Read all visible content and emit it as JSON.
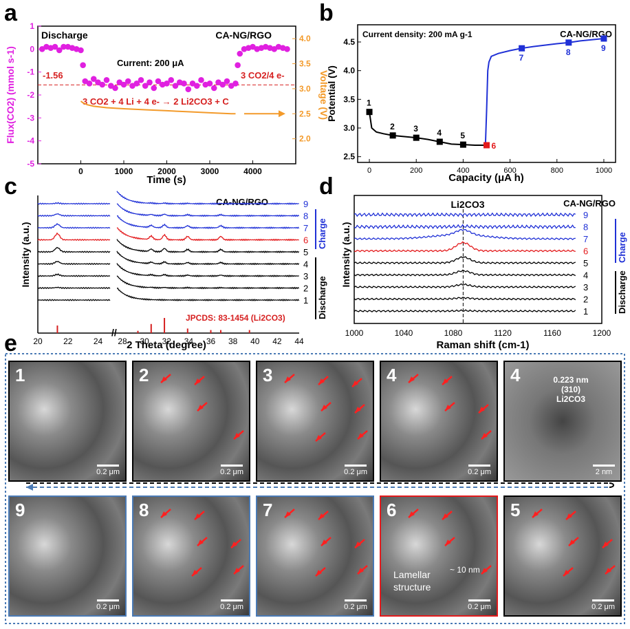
{
  "panel_labels": {
    "a": "a",
    "b": "b",
    "c": "c",
    "d": "d",
    "e": "e"
  },
  "colors": {
    "magenta": "#e020e0",
    "orange": "#f39a2a",
    "red": "#e31a1c",
    "blue": "#1f30d6",
    "black": "#000000",
    "dashed_frame": "#4a7ab5"
  },
  "chart_data": [
    {
      "id": "a",
      "type": "scatter",
      "title_left": "Discharge",
      "title_right": "CA-NG/RGO",
      "xlabel": "Time (s)",
      "ylabel_left": "Flux(CO2) (mmol s-1)",
      "ylabel_right": "Voltage (V)",
      "xlim": [
        -1000,
        5000
      ],
      "ylim_left": [
        -5,
        1
      ],
      "ylim_right": [
        1.5,
        4.25
      ],
      "xticks": [
        0,
        1000,
        2000,
        3000,
        4000
      ],
      "yticks_left": [
        1,
        0,
        -1,
        -2,
        -3,
        -4,
        -5
      ],
      "yticks_right": [
        2.0,
        2.5,
        3.0,
        3.5,
        4.0
      ],
      "annotations": {
        "current": "Current: 200 μA",
        "level": "-1.56",
        "ratio": "3 CO2/4 e-",
        "reaction": "3 CO2 + 4 Li + 4 e- → 2 Li2CO3 + C"
      },
      "flux_x": [
        -900,
        -800,
        -700,
        -600,
        -500,
        -400,
        -300,
        -200,
        -100,
        0,
        50,
        100,
        200,
        300,
        400,
        500,
        600,
        700,
        800,
        900,
        1000,
        1100,
        1200,
        1300,
        1400,
        1500,
        1600,
        1700,
        1800,
        1900,
        2000,
        2100,
        2200,
        2300,
        2400,
        2500,
        2600,
        2700,
        2800,
        2900,
        3000,
        3100,
        3200,
        3300,
        3400,
        3500,
        3600,
        3650,
        3700,
        3800,
        3900,
        4000,
        4100,
        4200,
        4300,
        4400,
        4500,
        4600,
        4700,
        4800
      ],
      "flux_y": [
        0,
        0.1,
        0.05,
        0.1,
        -0.05,
        0.1,
        0.1,
        0.05,
        0,
        -0.05,
        -0.7,
        -1.4,
        -1.5,
        -1.3,
        -1.45,
        -1.55,
        -1.35,
        -1.6,
        -1.7,
        -1.45,
        -1.55,
        -1.4,
        -1.6,
        -1.5,
        -1.35,
        -1.6,
        -1.45,
        -1.7,
        -1.4,
        -1.55,
        -1.5,
        -1.35,
        -1.6,
        -1.45,
        -1.5,
        -1.75,
        -1.5,
        -1.6,
        -1.35,
        -1.55,
        -1.5,
        -1.7,
        -1.45,
        -1.55,
        -1.4,
        -1.6,
        -1.5,
        -0.7,
        -0.2,
        0.0,
        0.05,
        0.1,
        0.0,
        0.05,
        0.1,
        0.05,
        0.0,
        0.1,
        0.05,
        0.0
      ],
      "voltage_x": [
        0,
        50,
        150,
        300,
        600,
        1000,
        1500,
        2000,
        2500,
        3000,
        3500,
        3600
      ],
      "voltage_y": [
        2.75,
        2.72,
        2.68,
        2.65,
        2.62,
        2.6,
        2.58,
        2.56,
        2.54,
        2.52,
        2.5,
        2.5
      ]
    },
    {
      "id": "b",
      "type": "line",
      "title_left": "Current density: 200 mA g-1",
      "title_right": "CA-NG/RGO",
      "xlabel": "Capacity (μA h)",
      "ylabel": "Potential (V)",
      "xlim": [
        -50,
        1050
      ],
      "ylim": [
        2.4,
        4.8
      ],
      "xticks": [
        0,
        200,
        400,
        600,
        800,
        1000
      ],
      "yticks": [
        2.5,
        3.0,
        3.5,
        4.0,
        4.5
      ],
      "discharge_x": [
        0,
        10,
        30,
        60,
        100,
        150,
        200,
        250,
        300,
        350,
        400,
        450,
        490
      ],
      "discharge_y": [
        3.28,
        3.0,
        2.93,
        2.9,
        2.87,
        2.85,
        2.83,
        2.8,
        2.76,
        2.72,
        2.71,
        2.7,
        2.7
      ],
      "charge_x": [
        495,
        500,
        505,
        510,
        520,
        550,
        600,
        650,
        700,
        800,
        850,
        900,
        1000
      ],
      "charge_y": [
        2.7,
        3.3,
        4.0,
        4.15,
        4.25,
        4.3,
        4.35,
        4.39,
        4.42,
        4.47,
        4.49,
        4.52,
        4.56
      ],
      "points": [
        {
          "label": "1",
          "x": 0,
          "y": 3.28,
          "color": "#000000"
        },
        {
          "label": "2",
          "x": 100,
          "y": 2.87,
          "color": "#000000"
        },
        {
          "label": "3",
          "x": 200,
          "y": 2.83,
          "color": "#000000"
        },
        {
          "label": "4",
          "x": 300,
          "y": 2.76,
          "color": "#000000"
        },
        {
          "label": "5",
          "x": 400,
          "y": 2.71,
          "color": "#000000"
        },
        {
          "label": "6",
          "x": 500,
          "y": 2.7,
          "color": "#e31a1c"
        },
        {
          "label": "7",
          "x": 650,
          "y": 4.39,
          "color": "#1f30d6"
        },
        {
          "label": "8",
          "x": 850,
          "y": 4.49,
          "color": "#1f30d6"
        },
        {
          "label": "9",
          "x": 1000,
          "y": 4.56,
          "color": "#1f30d6"
        }
      ]
    },
    {
      "id": "c",
      "type": "line",
      "title_right": "CA-NG/RGO",
      "xlabel": "2 Theta (degree)",
      "ylabel": "Intensity (a.u.)",
      "xticks": [
        "20",
        "22",
        "24",
        "28",
        "30",
        "32",
        "34",
        "36",
        "38",
        "40",
        "42",
        "44"
      ],
      "reference_label": "JPCDS: 83-1454 (Li2CO3)",
      "reference_peaks_theta": [
        21.3,
        29.4,
        30.6,
        31.8,
        33.9,
        36.0,
        36.9,
        39.5
      ],
      "reference_peaks_rel": [
        0.5,
        0.15,
        0.6,
        1.0,
        0.3,
        0.2,
        0.2,
        0.2
      ],
      "peaks_theta": [
        21.3,
        30.6,
        31.8,
        33.9,
        36.9
      ],
      "curve_labels": [
        "9",
        "8",
        "7",
        "6",
        "5",
        "4",
        "3",
        "2",
        "1"
      ],
      "curve_colors": [
        "#1f30d6",
        "#1f30d6",
        "#1f30d6",
        "#e31a1c",
        "#000000",
        "#000000",
        "#000000",
        "#000000",
        "#000000"
      ],
      "peak_strength": [
        0.1,
        0.3,
        0.6,
        1.0,
        0.7,
        0.4,
        0.25,
        0.1,
        0.0
      ],
      "arrow_discharge": "Discharge",
      "arrow_charge": "Charge"
    },
    {
      "id": "d",
      "type": "line",
      "title_center": "Li2CO3",
      "title_right": "CA-NG/RGO",
      "xlabel": "Raman shift (cm-1)",
      "ylabel": "Intensity (a.u.)",
      "xlim": [
        1000,
        1200
      ],
      "xticks": [
        1000,
        1040,
        1080,
        1120,
        1160,
        1200
      ],
      "peak_shift": 1088,
      "curve_labels": [
        "9",
        "8",
        "7",
        "6",
        "5",
        "4",
        "3",
        "2",
        "1"
      ],
      "curve_colors": [
        "#1f30d6",
        "#1f30d6",
        "#1f30d6",
        "#e31a1c",
        "#000000",
        "#000000",
        "#000000",
        "#000000",
        "#000000"
      ],
      "peak_strength": [
        0.0,
        0.05,
        0.6,
        1.0,
        0.7,
        0.5,
        0.3,
        0.15,
        0.05
      ],
      "arrow_discharge": "Discharge",
      "arrow_charge": "Charge"
    }
  ],
  "sem": {
    "row1": [
      {
        "num": "1",
        "scale": "0.2 μm",
        "border": "#000000",
        "arrows": 0
      },
      {
        "num": "2",
        "scale": "0.2 μm",
        "border": "#000000",
        "arrows": 4
      },
      {
        "num": "3",
        "scale": "0.2 μm",
        "border": "#000000",
        "arrows": 7
      },
      {
        "num": "4",
        "scale": "0.2 μm",
        "border": "#000000",
        "arrows": 5
      },
      {
        "num": "4",
        "scale": "2 nm",
        "border": "#000000",
        "arrows": 0,
        "tem": true,
        "tem_text_1": "0.223 nm",
        "tem_text_2": "(310)",
        "tem_text_3": "Li2CO3"
      }
    ],
    "row2": [
      {
        "num": "9",
        "scale": "0.2 μm",
        "border": "#4a7ab5",
        "arrows": 0
      },
      {
        "num": "8",
        "scale": "0.2 μm",
        "border": "#4a7ab5",
        "arrows": 6
      },
      {
        "num": "7",
        "scale": "0.2 μm",
        "border": "#4a7ab5",
        "arrows": 6
      },
      {
        "num": "6",
        "scale": "0.2 μm",
        "border": "#e31a1c",
        "arrows": 4,
        "note_1": "Lamellar",
        "note_2": "structure",
        "note_3": "~ 10 nm"
      },
      {
        "num": "5",
        "scale": "0.2 μm",
        "border": "#000000",
        "arrows": 6
      }
    ]
  }
}
